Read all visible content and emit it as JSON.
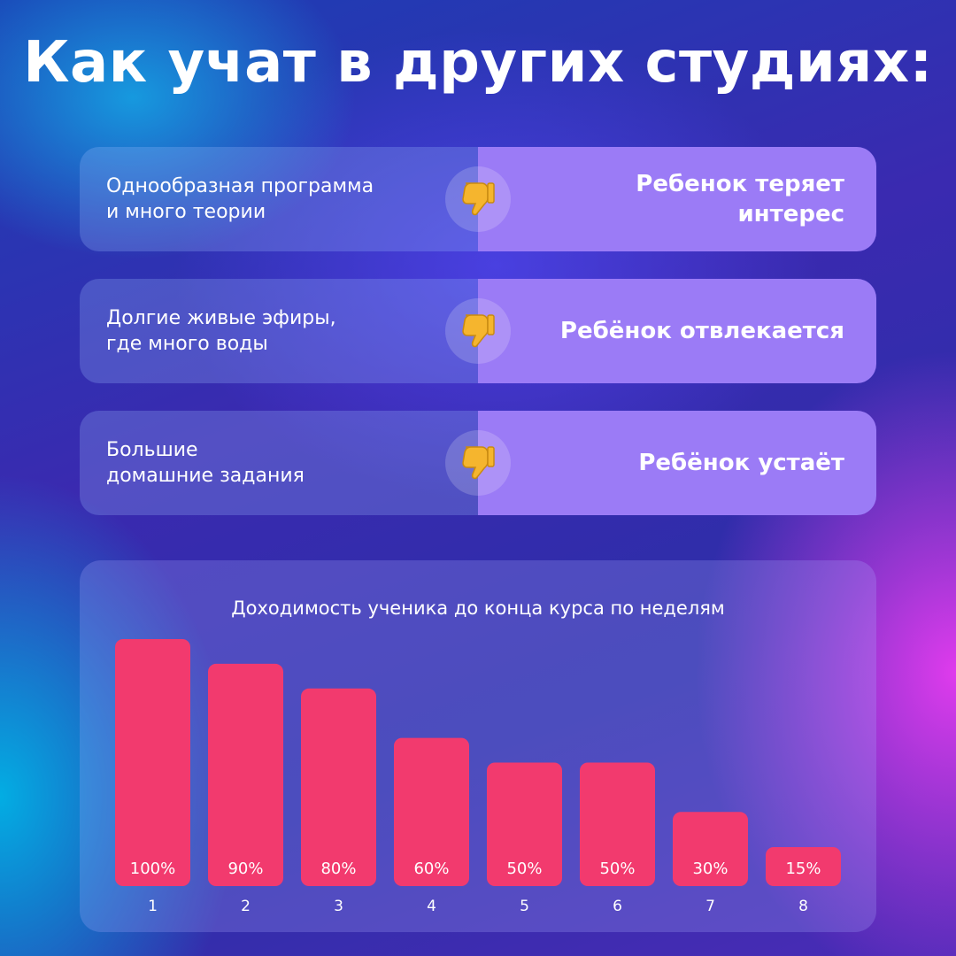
{
  "title": "Как учат в других студиях:",
  "rows": [
    {
      "problem": "Однообразная программа\nи много теории",
      "result": "Ребенок теряет\nинтерес",
      "icon": "thumbs-down-icon"
    },
    {
      "problem": "Долгие живые эфиры,\nгде много воды",
      "result": "Ребёнок отвлекается",
      "icon": "thumbs-down-icon"
    },
    {
      "problem": "Большие\nдомашние задания",
      "result": "Ребёнок устаёт",
      "icon": "thumbs-down-icon"
    }
  ],
  "colors": {
    "bar": "#f23a6e",
    "icon": "#f5b52e",
    "row_right": "#9b7bf6"
  },
  "chart_data": {
    "type": "bar",
    "title": "Доходимость ученика до конца курса по неделям",
    "categories": [
      "1",
      "2",
      "3",
      "4",
      "5",
      "6",
      "7",
      "8"
    ],
    "values": [
      100,
      90,
      80,
      60,
      50,
      50,
      30,
      15
    ],
    "value_labels": [
      "100%",
      "90%",
      "80%",
      "60%",
      "50%",
      "50%",
      "30%",
      "15%"
    ],
    "ylim": [
      0,
      100
    ],
    "xlabel": "",
    "ylabel": "",
    "grid": false,
    "legend": "none"
  }
}
